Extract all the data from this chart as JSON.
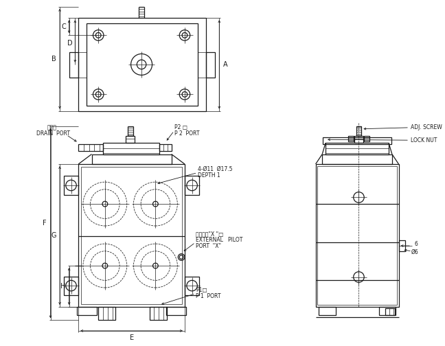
{
  "bg_color": "#ffffff",
  "line_color": "#1a1a1a",
  "lw": 0.9,
  "tlw": 0.5,
  "dlw": 0.55,
  "fs": 6.0,
  "sfs": 5.5,
  "labels": {
    "drain_port_cn": "浅流口",
    "drain_port": "DRAIN  PORT",
    "p2_cn": "P2 □",
    "p2_port": "P 2  PORT",
    "holes": "4-Ø11  Ø17.5",
    "depth": "DEPTH 1",
    "ext_pilot_cn": "外部引導\"X \"□",
    "ext_pilot1": "EXTERNAL   PILOT",
    "ext_pilot2": "PORT  \"X\"",
    "p1_cn": "P1□",
    "p1_port": "P 1  PORT",
    "adj_screw": "ADJ. SCREW",
    "lock_nut": "LOCK NUT",
    "dim6": "6",
    "diamphi6": "Ø6"
  }
}
